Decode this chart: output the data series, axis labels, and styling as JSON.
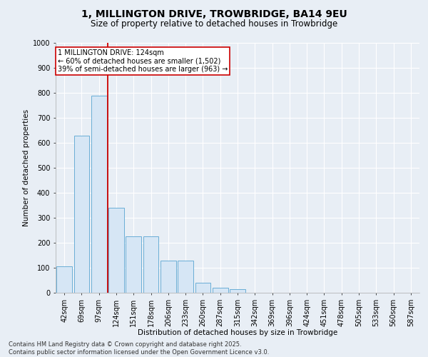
{
  "title": "1, MILLINGTON DRIVE, TROWBRIDGE, BA14 9EU",
  "subtitle": "Size of property relative to detached houses in Trowbridge",
  "xlabel": "Distribution of detached houses by size in Trowbridge",
  "ylabel": "Number of detached properties",
  "categories": [
    "42sqm",
    "69sqm",
    "97sqm",
    "124sqm",
    "151sqm",
    "178sqm",
    "206sqm",
    "233sqm",
    "260sqm",
    "287sqm",
    "315sqm",
    "342sqm",
    "369sqm",
    "396sqm",
    "424sqm",
    "451sqm",
    "478sqm",
    "505sqm",
    "533sqm",
    "560sqm",
    "587sqm"
  ],
  "values": [
    105,
    630,
    790,
    340,
    225,
    225,
    130,
    130,
    40,
    20,
    15,
    0,
    0,
    0,
    0,
    0,
    0,
    0,
    0,
    0,
    0
  ],
  "bar_color": "#d6e6f5",
  "bar_edge_color": "#6aaed6",
  "redline_x": 3,
  "redline_label": "1 MILLINGTON DRIVE: 124sqm",
  "annotation_line1": "← 60% of detached houses are smaller (1,502)",
  "annotation_line2": "39% of semi-detached houses are larger (963) →",
  "annotation_box_color": "#ffffff",
  "annotation_box_edge": "#cc0000",
  "ylim": [
    0,
    1000
  ],
  "yticks": [
    0,
    100,
    200,
    300,
    400,
    500,
    600,
    700,
    800,
    900,
    1000
  ],
  "footer_line1": "Contains HM Land Registry data © Crown copyright and database right 2025.",
  "footer_line2": "Contains public sector information licensed under the Open Government Licence v3.0.",
  "bg_color": "#e8eef5",
  "plot_bg_color": "#e8eef5",
  "grid_color": "#ffffff",
  "title_fontsize": 10,
  "subtitle_fontsize": 8.5,
  "axis_label_fontsize": 7.5,
  "tick_fontsize": 7,
  "annotation_fontsize": 7,
  "footer_fontsize": 6
}
